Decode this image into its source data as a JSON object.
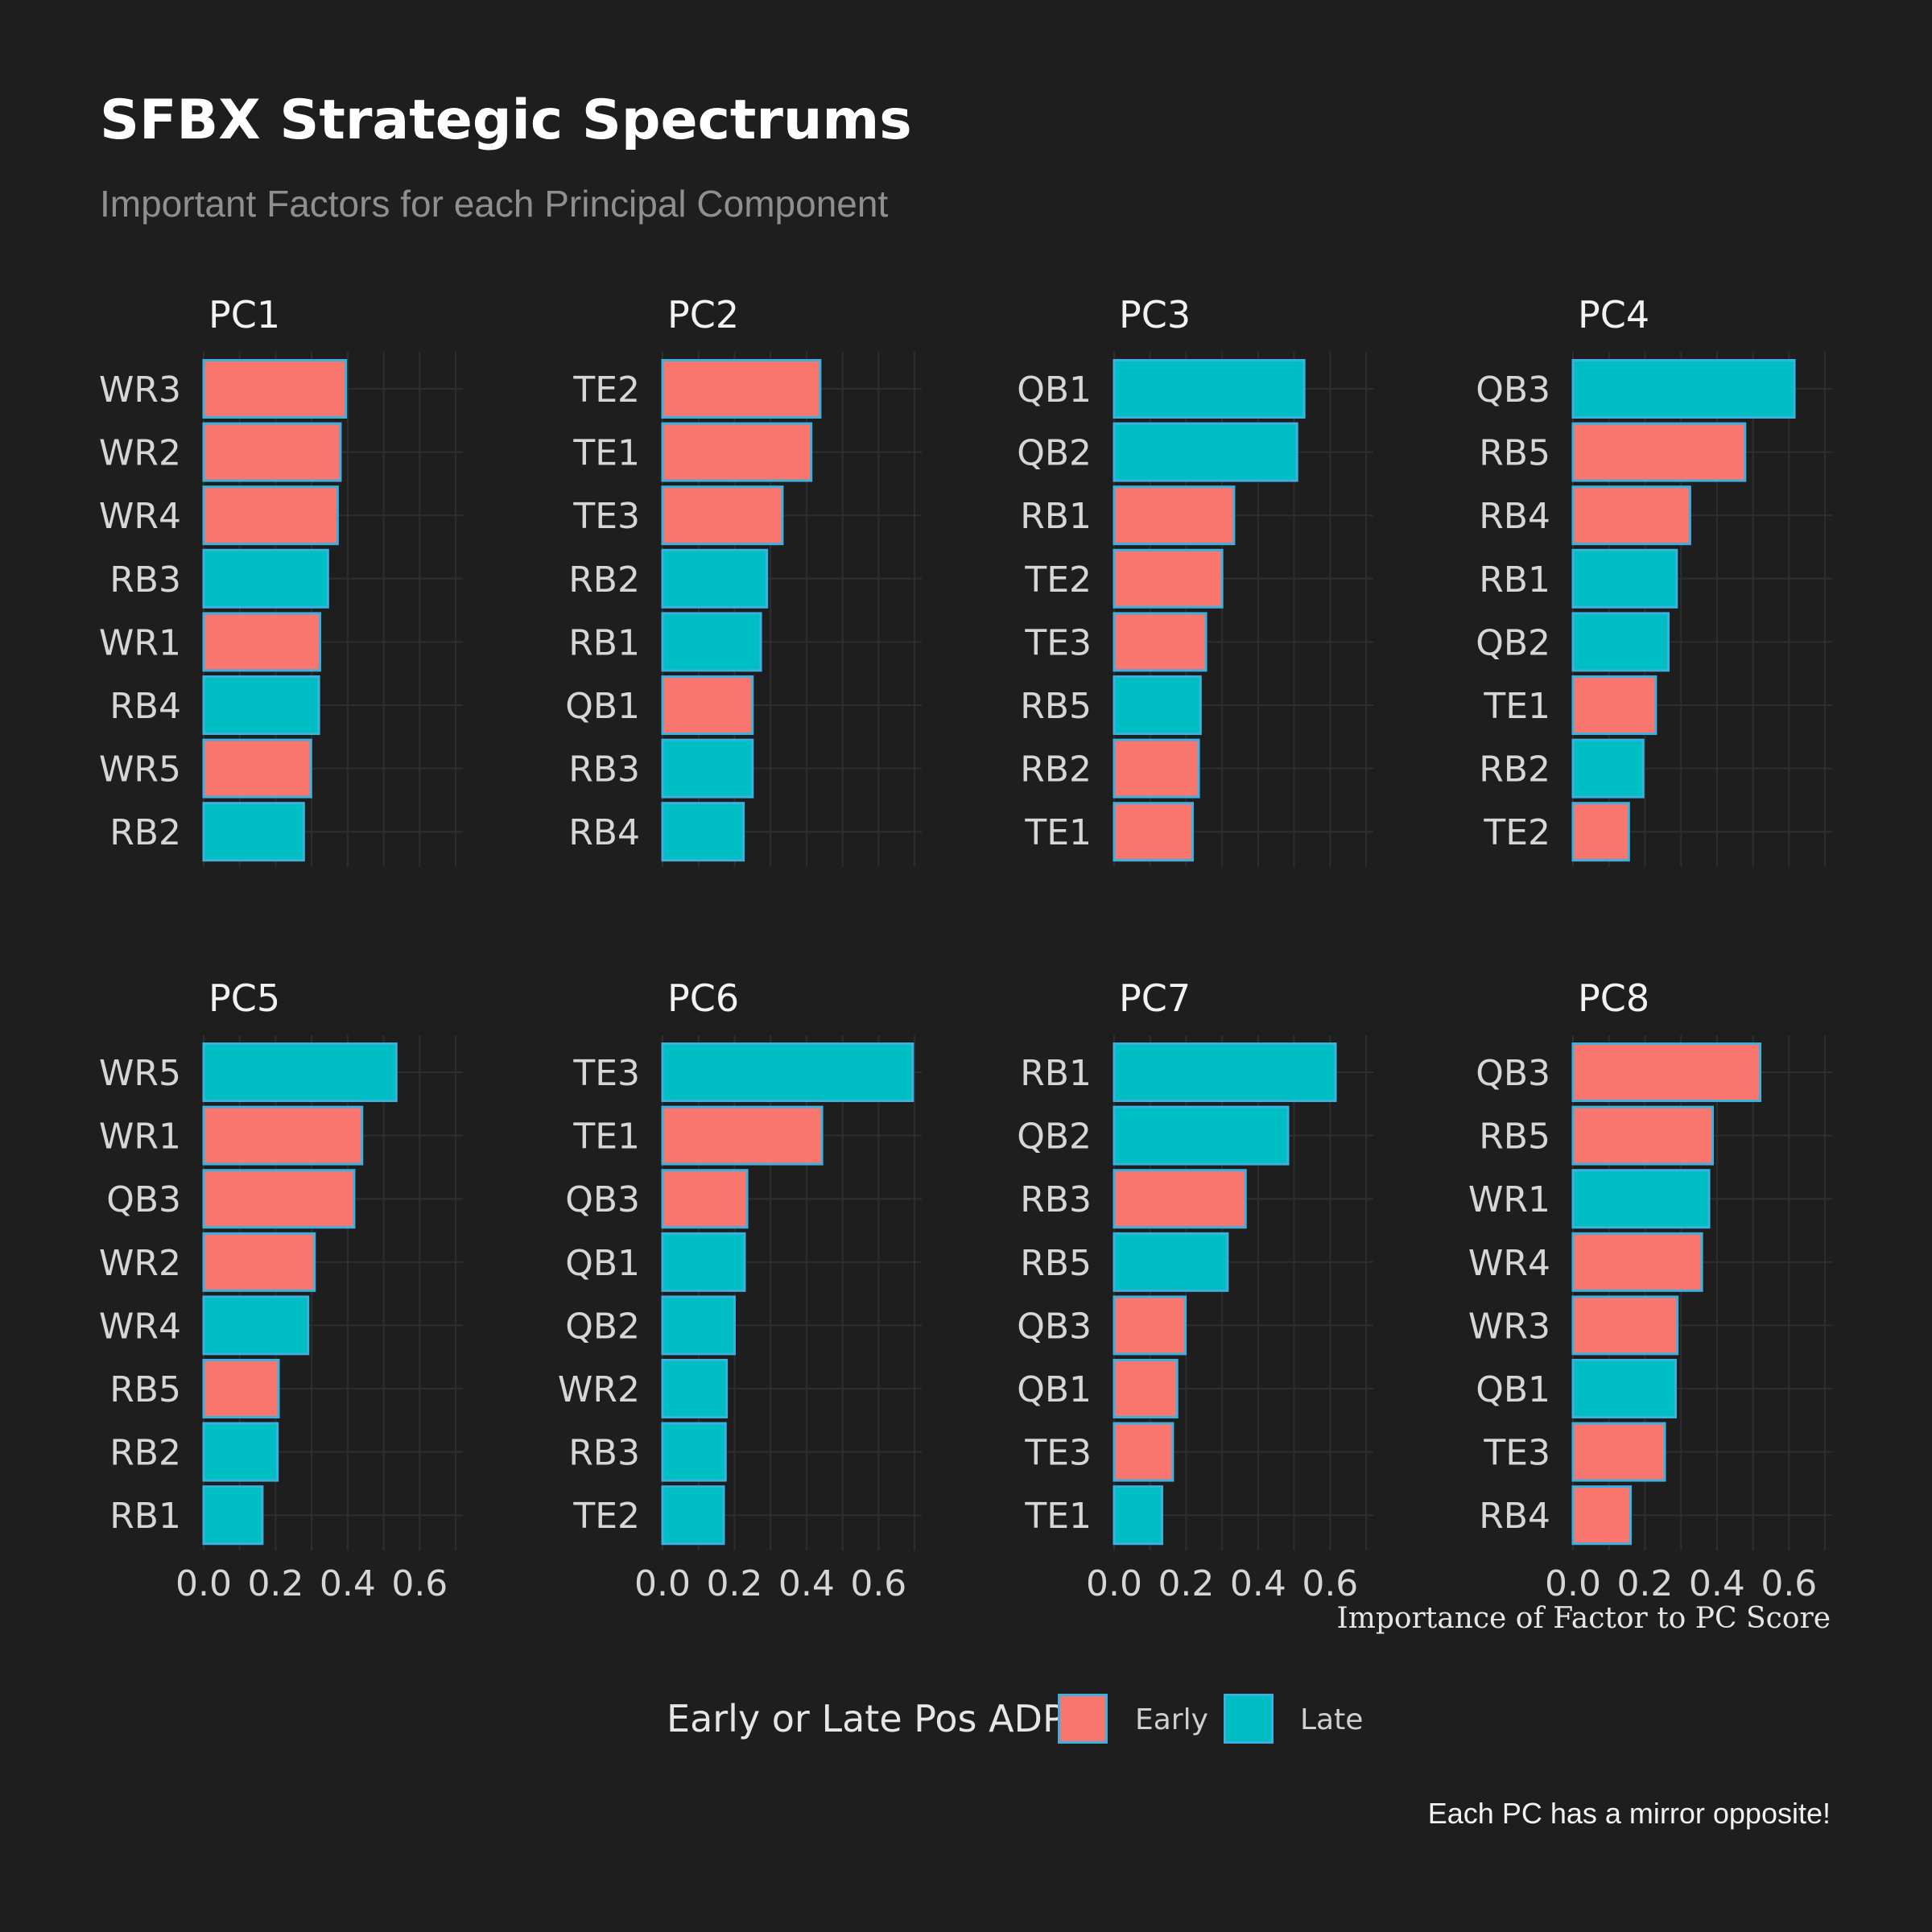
{
  "header": {
    "title": "SFBX Strategic Spectrums",
    "subtitle": "Important Factors for each Principal Component"
  },
  "legend": {
    "title": "Early or Late Pos ADP",
    "items": [
      {
        "label": "Early",
        "color": "#f8766d"
      },
      {
        "label": "Late",
        "color": "#00bfc4"
      }
    ]
  },
  "caption": "Each PC has a mirror opposite!",
  "colors": {
    "background": "#1e1e1e",
    "grid": "#2e2e2e",
    "bar_border": "#3bb1e0",
    "early": "#f8766d",
    "late": "#00bfc4"
  },
  "chart_data": {
    "type": "bar",
    "orientation": "horizontal",
    "xlabel": "Importance of Factor to PC Score",
    "xlim": [
      0,
      0.72
    ],
    "x_ticks": [
      "0.0",
      "0.2",
      "0.4",
      "0.6"
    ],
    "x_tick_values": [
      0,
      0.2,
      0.4,
      0.6
    ],
    "panels": [
      {
        "title": "PC1",
        "categories": [
          "WR3",
          "WR2",
          "WR4",
          "RB3",
          "WR1",
          "RB4",
          "WR5",
          "RB2"
        ],
        "values": [
          0.395,
          0.38,
          0.372,
          0.345,
          0.323,
          0.32,
          0.298,
          0.278
        ],
        "groups": [
          "Early",
          "Early",
          "Early",
          "Late",
          "Early",
          "Late",
          "Early",
          "Late"
        ]
      },
      {
        "title": "PC2",
        "categories": [
          "TE2",
          "TE1",
          "TE3",
          "RB2",
          "RB1",
          "QB1",
          "RB3",
          "RB4"
        ],
        "values": [
          0.438,
          0.413,
          0.333,
          0.29,
          0.273,
          0.25,
          0.25,
          0.225
        ],
        "groups": [
          "Early",
          "Early",
          "Early",
          "Late",
          "Late",
          "Early",
          "Late",
          "Late"
        ]
      },
      {
        "title": "PC3",
        "categories": [
          "QB1",
          "QB2",
          "RB1",
          "TE2",
          "TE3",
          "RB5",
          "RB2",
          "TE1"
        ],
        "values": [
          0.528,
          0.508,
          0.333,
          0.3,
          0.255,
          0.24,
          0.235,
          0.218
        ],
        "groups": [
          "Late",
          "Late",
          "Early",
          "Early",
          "Early",
          "Late",
          "Early",
          "Early"
        ]
      },
      {
        "title": "PC4",
        "categories": [
          "QB3",
          "RB5",
          "RB4",
          "RB1",
          "QB2",
          "TE1",
          "RB2",
          "TE2"
        ],
        "values": [
          0.615,
          0.478,
          0.325,
          0.288,
          0.265,
          0.23,
          0.195,
          0.155
        ],
        "groups": [
          "Late",
          "Early",
          "Early",
          "Late",
          "Late",
          "Early",
          "Late",
          "Early"
        ]
      },
      {
        "title": "PC5",
        "categories": [
          "WR5",
          "WR1",
          "QB3",
          "WR2",
          "WR4",
          "RB5",
          "RB2",
          "RB1"
        ],
        "values": [
          0.535,
          0.44,
          0.418,
          0.308,
          0.29,
          0.208,
          0.205,
          0.163
        ],
        "groups": [
          "Late",
          "Early",
          "Early",
          "Early",
          "Late",
          "Early",
          "Late",
          "Late"
        ]
      },
      {
        "title": "PC6",
        "categories": [
          "TE3",
          "TE1",
          "QB3",
          "QB1",
          "QB2",
          "WR2",
          "RB3",
          "TE2"
        ],
        "values": [
          0.695,
          0.443,
          0.235,
          0.228,
          0.2,
          0.178,
          0.175,
          0.17
        ],
        "groups": [
          "Late",
          "Early",
          "Early",
          "Late",
          "Late",
          "Late",
          "Late",
          "Late"
        ]
      },
      {
        "title": "PC7",
        "categories": [
          "RB1",
          "QB2",
          "RB3",
          "RB5",
          "QB3",
          "QB1",
          "TE3",
          "TE1"
        ],
        "values": [
          0.615,
          0.483,
          0.365,
          0.315,
          0.198,
          0.175,
          0.163,
          0.133
        ],
        "groups": [
          "Late",
          "Late",
          "Early",
          "Late",
          "Early",
          "Early",
          "Early",
          "Late"
        ]
      },
      {
        "title": "PC8",
        "categories": [
          "QB3",
          "RB5",
          "WR1",
          "WR4",
          "WR3",
          "QB1",
          "TE3",
          "RB4"
        ],
        "values": [
          0.52,
          0.388,
          0.378,
          0.358,
          0.29,
          0.285,
          0.255,
          0.16
        ],
        "groups": [
          "Early",
          "Early",
          "Late",
          "Early",
          "Early",
          "Late",
          "Early",
          "Early"
        ]
      }
    ]
  }
}
